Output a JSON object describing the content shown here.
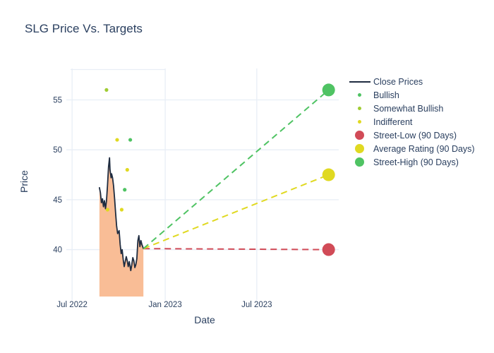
{
  "title": "SLG Price Vs. Targets",
  "colors": {
    "text": "#2a3f5f",
    "close_line": "#1f2c40",
    "close_fill": "#f9bd96",
    "bullish": "#4fc363",
    "somewhat_bullish": "#a0cc33",
    "indifferent": "#e0d921",
    "street_low": "#d14b57",
    "average_rating": "#e0d921",
    "street_high": "#4fc363",
    "grid": "#e8eef6",
    "background": "#ffffff"
  },
  "legend": {
    "position": "right",
    "items": [
      {
        "label": "Close Prices",
        "swatch": "line",
        "color_key": "close_line"
      },
      {
        "label": "Bullish",
        "swatch": "dot",
        "color_key": "bullish"
      },
      {
        "label": "Somewhat Bullish",
        "swatch": "dot",
        "color_key": "somewhat_bullish"
      },
      {
        "label": "Indifferent",
        "swatch": "dot",
        "color_key": "indifferent"
      },
      {
        "label": "Street-Low (90 Days)",
        "swatch": "bigdot",
        "color_key": "street_low"
      },
      {
        "label": "Average Rating (90 Days)",
        "swatch": "bigdot",
        "color_key": "average_rating"
      },
      {
        "label": "Street-High (90 Days)",
        "swatch": "bigdot",
        "color_key": "street_high"
      }
    ]
  },
  "chart_data": {
    "type": "line",
    "title": "SLG Price Vs. Targets",
    "xlabel": "Date",
    "ylabel": "Price",
    "grid": true,
    "legend_position": "right",
    "x_ticks": [
      {
        "label": "Jul 2022",
        "date": "2022-07-01"
      },
      {
        "label": "Jan 2023",
        "date": "2023-01-01"
      },
      {
        "label": "Jul 2023",
        "date": "2023-07-01"
      }
    ],
    "y_ticks": [
      40,
      45,
      50,
      55
    ],
    "x_range": [
      "2022-06-28",
      "2023-12-10"
    ],
    "y_range": [
      35.3,
      58.15
    ],
    "close_prices": [
      [
        "2022-08-24",
        46.2
      ],
      [
        "2022-08-26",
        45.7
      ],
      [
        "2022-08-28",
        44.7
      ],
      [
        "2022-08-30",
        45.1
      ],
      [
        "2022-09-01",
        44.3
      ],
      [
        "2022-09-03",
        44.9
      ],
      [
        "2022-09-05",
        44.1
      ],
      [
        "2022-09-07",
        44.9
      ],
      [
        "2022-09-09",
        46.4
      ],
      [
        "2022-09-11",
        48.3
      ],
      [
        "2022-09-13",
        49.2
      ],
      [
        "2022-09-14",
        48.0
      ],
      [
        "2022-09-16",
        47.2
      ],
      [
        "2022-09-17",
        47.6
      ],
      [
        "2022-09-19",
        47.2
      ],
      [
        "2022-09-21",
        46.4
      ],
      [
        "2022-09-23",
        45.1
      ],
      [
        "2022-09-25",
        43.7
      ],
      [
        "2022-09-27",
        42.4
      ],
      [
        "2022-09-29",
        41.6
      ],
      [
        "2022-10-02",
        41.9
      ],
      [
        "2022-10-04",
        40.5
      ],
      [
        "2022-10-06",
        39.6
      ],
      [
        "2022-10-08",
        40.0
      ],
      [
        "2022-10-10",
        39.0
      ],
      [
        "2022-10-12",
        38.3
      ],
      [
        "2022-10-14",
        38.8
      ],
      [
        "2022-10-16",
        39.3
      ],
      [
        "2022-10-18",
        38.9
      ],
      [
        "2022-10-20",
        38.3
      ],
      [
        "2022-10-22",
        38.8
      ],
      [
        "2022-10-25",
        37.9
      ],
      [
        "2022-10-27",
        38.5
      ],
      [
        "2022-10-29",
        39.2
      ],
      [
        "2022-10-31",
        38.9
      ],
      [
        "2022-11-02",
        38.2
      ],
      [
        "2022-11-04",
        38.5
      ],
      [
        "2022-11-06",
        39.1
      ],
      [
        "2022-11-08",
        40.9
      ],
      [
        "2022-11-10",
        41.4
      ],
      [
        "2022-11-12",
        40.3
      ],
      [
        "2022-11-14",
        40.9
      ],
      [
        "2022-11-16",
        40.5
      ],
      [
        "2022-11-19",
        40.1
      ]
    ],
    "ratings": {
      "bullish": [
        [
          "2022-10-13",
          46
        ],
        [
          "2022-10-24",
          51
        ]
      ],
      "somewhat_bullish": [
        [
          "2022-09-07",
          56
        ]
      ],
      "indifferent": [
        [
          "2022-09-09",
          44
        ],
        [
          "2022-09-28",
          51
        ],
        [
          "2022-10-07",
          44
        ],
        [
          "2022-10-18",
          48
        ]
      ]
    },
    "targets": {
      "date": "2023-11-20",
      "street_low": 40,
      "average_rating": 47.5,
      "street_high": 56
    }
  }
}
